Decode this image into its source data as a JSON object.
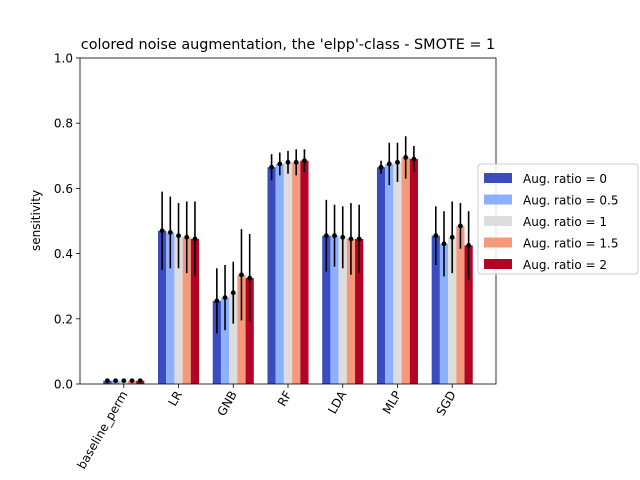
{
  "chart_data": {
    "type": "bar",
    "title": "colored noise augmentation, the 'elpp'-class - SMOTE = 1",
    "xlabel": "",
    "ylabel": "sensitivity",
    "ylim": [
      0,
      1.0
    ],
    "yticks": [
      "0.0",
      "0.2",
      "0.4",
      "0.6",
      "0.8",
      "1.0"
    ],
    "categories": [
      "baseline_perm",
      "LR",
      "GNB",
      "RF",
      "LDA",
      "MLP",
      "SGD"
    ],
    "legend_position": "right, outside plot",
    "series": [
      {
        "name": "Aug. ratio = 0",
        "color": "#3b4cc0",
        "values": [
          0.01,
          0.47,
          0.255,
          0.665,
          0.455,
          0.665,
          0.455
        ],
        "err": [
          0.005,
          0.12,
          0.1,
          0.04,
          0.11,
          0.02,
          0.09
        ]
      },
      {
        "name": "Aug. ratio = 0.5",
        "color": "#8db0fe",
        "values": [
          0.01,
          0.465,
          0.265,
          0.675,
          0.455,
          0.675,
          0.43
        ],
        "err": [
          0.005,
          0.11,
          0.1,
          0.035,
          0.095,
          0.065,
          0.1
        ]
      },
      {
        "name": "Aug. ratio = 1",
        "color": "#dddddd",
        "values": [
          0.01,
          0.455,
          0.28,
          0.68,
          0.45,
          0.68,
          0.45
        ],
        "err": [
          0.005,
          0.1,
          0.095,
          0.035,
          0.095,
          0.06,
          0.11
        ]
      },
      {
        "name": "Aug. ratio = 1.5",
        "color": "#f49a7b",
        "values": [
          0.01,
          0.45,
          0.335,
          0.68,
          0.445,
          0.695,
          0.485
        ],
        "err": [
          0.005,
          0.11,
          0.14,
          0.04,
          0.11,
          0.065,
          0.07
        ]
      },
      {
        "name": "Aug. ratio = 2",
        "color": "#b40426",
        "values": [
          0.01,
          0.445,
          0.325,
          0.685,
          0.445,
          0.69,
          0.425
        ],
        "err": [
          0.005,
          0.115,
          0.135,
          0.035,
          0.105,
          0.04,
          0.105
        ]
      }
    ]
  }
}
